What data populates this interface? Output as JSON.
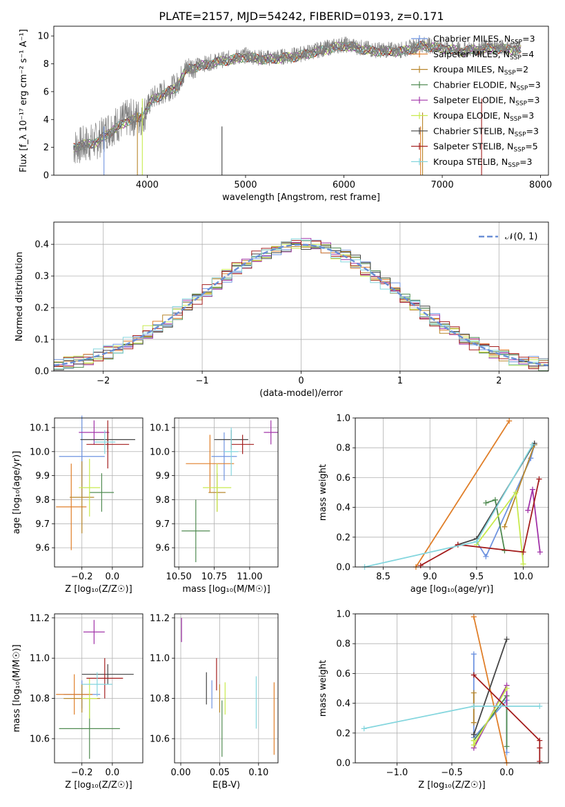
{
  "title": "PLATE=2157, MJD=54242, FIBERID=0193, z=0.171",
  "colors": [
    "#6e93e0",
    "#e07e28",
    "#b8862a",
    "#4f8a50",
    "#a132a8",
    "#c8ea4c",
    "#444444",
    "#a31c1c",
    "#84d6de"
  ],
  "chart_data": [
    {
      "name": "spectrum",
      "type": "line",
      "xlabel": "wavelength [Angstrom, rest frame]",
      "ylabel": "Flux [f_λ 10⁻¹⁷ erg cm⁻² s⁻¹ A⁻¹]",
      "xlim": [
        3050,
        8080
      ],
      "ylim": [
        0,
        10.7
      ],
      "xticks": [
        "4000",
        "5000",
        "6000",
        "7000",
        "8000"
      ],
      "yticks": [
        "0",
        "2",
        "4",
        "6",
        "8",
        "10"
      ],
      "legend": "upper-right",
      "series": [
        {
          "name": "Chabrier MILES, N_SSP=3"
        },
        {
          "name": "Salpeter MILES, N_SSP=4"
        },
        {
          "name": "Kroupa MILES, N_SSP=2"
        },
        {
          "name": "Chabrier ELODIE, N_SSP=3"
        },
        {
          "name": "Salpeter ELODIE, N_SSP=3"
        },
        {
          "name": "Kroupa ELODIE, N_SSP=3"
        },
        {
          "name": "Chabrier STELIB, N_SSP=3"
        },
        {
          "name": "Salpeter STELIB, N_SSP=5"
        },
        {
          "name": "Kroupa STELIB, N_SSP=3"
        }
      ],
      "data_spectrum": {
        "x": [
          3250,
          3500,
          3600,
          3800,
          3950,
          4050,
          4300,
          4400,
          4700,
          5000,
          5200,
          5500,
          5800,
          6000,
          6300,
          6600,
          6800,
          7000,
          7200,
          7500,
          7800
        ],
        "y": [
          2.0,
          2.5,
          3.3,
          4.1,
          4.2,
          5.5,
          6.5,
          7.7,
          8.2,
          8.6,
          8.4,
          8.6,
          9.1,
          9.4,
          9.0,
          9.0,
          9.4,
          9.2,
          9.0,
          9.2,
          9.1
        ]
      },
      "model_spectrum": {
        "x": [
          3250,
          3500,
          3600,
          3800,
          3950,
          4050,
          4300,
          4400,
          4700,
          5000,
          5200,
          5500,
          5800,
          6000,
          6300,
          6600,
          6800,
          7000,
          7200,
          7500,
          7800
        ],
        "y": [
          2.0,
          2.4,
          3.0,
          3.9,
          4.2,
          5.4,
          6.3,
          7.6,
          8.1,
          8.5,
          8.3,
          8.5,
          9.0,
          9.3,
          8.9,
          8.9,
          9.3,
          9.1,
          8.9,
          9.1,
          9.0
        ]
      }
    },
    {
      "name": "residuals",
      "type": "histogram",
      "xlabel": "(data-model)/error",
      "ylabel": "Normed distribution",
      "xlim": [
        -2.5,
        2.5
      ],
      "ylim": [
        0,
        0.47
      ],
      "xticks": [
        "−2",
        "−1",
        "0",
        "1",
        "2"
      ],
      "yticks": [
        "0.0",
        "0.1",
        "0.2",
        "0.3",
        "0.4"
      ],
      "grid": true,
      "legend": "upper-right",
      "legend_label": "𝒩(0, 1)",
      "bin_width": 0.1
    },
    {
      "name": "age-vs-Z",
      "type": "errorbar",
      "xlabel": "Z [log₁₀(Z/Z☉)]",
      "ylabel": "age  [log₁₀(age/yr)]",
      "xlim": [
        -0.38,
        0.2
      ],
      "ylim": [
        9.52,
        10.14
      ],
      "xticks": [
        "−0.2",
        "0.0"
      ],
      "yticks": [
        "9.6",
        "9.7",
        "9.8",
        "9.9",
        "10.0",
        "10.1"
      ],
      "grid": true,
      "points": [
        {
          "x": -0.2,
          "xerr": 0.15,
          "y": 9.98,
          "yerr": 0.17
        },
        {
          "x": -0.27,
          "xerr": 0.1,
          "y": 9.77,
          "yerr": 0.18
        },
        {
          "x": -0.2,
          "xerr": 0.08,
          "y": 9.81,
          "yerr": 0.15
        },
        {
          "x": -0.07,
          "xerr": 0.08,
          "y": 9.83,
          "yerr": 0.08
        },
        {
          "x": -0.12,
          "xerr": 0.1,
          "y": 10.08,
          "yerr": 0.05
        },
        {
          "x": -0.15,
          "xerr": 0.07,
          "y": 9.85,
          "yerr": 0.12
        },
        {
          "x": -0.03,
          "xerr": 0.18,
          "y": 10.05,
          "yerr": 0.04
        },
        {
          "x": -0.03,
          "xerr": 0.14,
          "y": 10.03,
          "yerr": 0.1
        },
        {
          "x": -0.05,
          "xerr": 0.07,
          "y": 10.04,
          "yerr": 0.05
        }
      ]
    },
    {
      "name": "age-vs-mass",
      "type": "errorbar",
      "xlabel": "mass [log₁₀(M/M☉)]",
      "ylabel": "",
      "xlim": [
        10.47,
        11.2
      ],
      "ylim": [
        9.52,
        10.14
      ],
      "xticks": [
        "10.50",
        "10.75",
        "11.00"
      ],
      "yticks": [
        "9.6",
        "9.7",
        "9.8",
        "9.9",
        "10.0",
        "10.1"
      ],
      "grid": true,
      "points": [
        {
          "x": 10.82,
          "xerr": 0.09,
          "y": 9.98,
          "yerr": 0.1
        },
        {
          "x": 10.72,
          "xerr": 0.17,
          "y": 9.95,
          "yerr": 0.12
        },
        {
          "x": 10.77,
          "xerr": 0.06,
          "y": 9.83,
          "yerr": 0.08
        },
        {
          "x": 10.62,
          "xerr": 0.1,
          "y": 9.67,
          "yerr": 0.13
        },
        {
          "x": 11.15,
          "xerr": 0.05,
          "y": 10.08,
          "yerr": 0.05
        },
        {
          "x": 10.77,
          "xerr": 0.1,
          "y": 9.85,
          "yerr": 0.1
        },
        {
          "x": 10.87,
          "xerr": 0.12,
          "y": 10.05,
          "yerr": 0.04
        },
        {
          "x": 10.95,
          "xerr": 0.08,
          "y": 10.03,
          "yerr": 0.04
        },
        {
          "x": 10.87,
          "xerr": 0.05,
          "y": 10.0,
          "yerr": 0.1
        }
      ]
    },
    {
      "name": "mass-weight-vs-age",
      "type": "line",
      "xlabel": "age  [log₁₀(age/yr)]",
      "ylabel": "mass weight",
      "xlim": [
        8.2,
        10.27
      ],
      "ylim": [
        0,
        1
      ],
      "xticks": [
        "8.5",
        "9.0",
        "9.5",
        "10.0"
      ],
      "yticks": [
        "0.0",
        "0.2",
        "0.4",
        "0.6",
        "0.8",
        "1.0"
      ],
      "grid": true,
      "series": [
        {
          "x": [
            9.5,
            9.6,
            10.08,
            10.12
          ],
          "y": [
            0.17,
            0.07,
            0.73,
            0.82
          ]
        },
        {
          "x": [
            8.85,
            9.85
          ],
          "y": [
            0.0,
            0.98
          ]
        },
        {
          "x": [
            9.8,
            10.12
          ],
          "y": [
            0.27,
            0.82
          ]
        },
        {
          "x": [
            9.6,
            9.7,
            9.8
          ],
          "y": [
            0.43,
            0.45,
            0.11
          ]
        },
        {
          "x": [
            10.05,
            10.1,
            10.18
          ],
          "y": [
            0.38,
            0.52,
            0.1
          ]
        },
        {
          "x": [
            9.5,
            9.92,
            10.0
          ],
          "y": [
            0.15,
            0.5,
            0.02
          ]
        },
        {
          "x": [
            9.3,
            9.5,
            10.12
          ],
          "y": [
            0.15,
            0.19,
            0.83
          ]
        },
        {
          "x": [
            8.9,
            9.3,
            10.0,
            10.17
          ],
          "y": [
            0.01,
            0.15,
            0.1,
            0.59
          ]
        },
        {
          "x": [
            8.3,
            9.5,
            10.1
          ],
          "y": [
            0.0,
            0.17,
            0.82
          ]
        }
      ]
    },
    {
      "name": "mass-vs-Z",
      "type": "errorbar",
      "xlabel": "Z [log₁₀(Z/Z☉)]",
      "ylabel": "mass [log₁₀(M/M☉)]",
      "xlim": [
        -0.38,
        0.2
      ],
      "ylim": [
        10.48,
        11.22
      ],
      "xticks": [
        "−0.2",
        "0.0"
      ],
      "yticks": [
        "10.6",
        "10.8",
        "11.0",
        "11.2"
      ],
      "grid": true,
      "points": [
        {
          "x": -0.2,
          "xerr": 0.12,
          "y": 10.82,
          "yerr": 0.07
        },
        {
          "x": -0.25,
          "xerr": 0.12,
          "y": 10.82,
          "yerr": 0.1
        },
        {
          "x": -0.2,
          "xerr": 0.12,
          "y": 10.8,
          "yerr": 0.07
        },
        {
          "x": -0.15,
          "xerr": 0.2,
          "y": 10.65,
          "yerr": 0.15
        },
        {
          "x": -0.12,
          "xerr": 0.07,
          "y": 11.13,
          "yerr": 0.06
        },
        {
          "x": -0.15,
          "xerr": 0.05,
          "y": 10.8,
          "yerr": 0.1
        },
        {
          "x": -0.03,
          "xerr": 0.17,
          "y": 10.92,
          "yerr": 0.05
        },
        {
          "x": -0.05,
          "xerr": 0.12,
          "y": 10.9,
          "yerr": 0.1
        },
        {
          "x": -0.1,
          "xerr": 0.1,
          "y": 10.87,
          "yerr": 0.06
        }
      ]
    },
    {
      "name": "mass-vs-EBV",
      "type": "errorbar",
      "xlabel": "E(B-V)",
      "ylabel": "",
      "xlim": [
        -0.008,
        0.125
      ],
      "ylim": [
        10.48,
        11.22
      ],
      "xticks": [
        "0.00",
        "0.05",
        "0.10"
      ],
      "yticks": [
        "10.6",
        "10.8",
        "11.0",
        "11.2"
      ],
      "grid": true,
      "points": [
        {
          "x": 0.04,
          "xerr": 0,
          "y": 10.82,
          "yerr": 0.07
        },
        {
          "x": 0.12,
          "xerr": 0,
          "y": 10.7,
          "yerr": 0.18
        },
        {
          "x": 0.05,
          "xerr": 0,
          "y": 10.8,
          "yerr": 0.07
        },
        {
          "x": 0.053,
          "xerr": 0,
          "y": 10.65,
          "yerr": 0.14
        },
        {
          "x": 0.001,
          "xerr": 0,
          "y": 11.14,
          "yerr": 0.06
        },
        {
          "x": 0.057,
          "xerr": 0,
          "y": 10.8,
          "yerr": 0.08
        },
        {
          "x": 0.033,
          "xerr": 0,
          "y": 10.85,
          "yerr": 0.08
        },
        {
          "x": 0.046,
          "xerr": 0,
          "y": 10.92,
          "yerr": 0.08
        },
        {
          "x": 0.097,
          "xerr": 0,
          "y": 10.78,
          "yerr": 0.13
        }
      ]
    },
    {
      "name": "mass-weight-vs-Z",
      "type": "line",
      "xlabel": "Z [log₁₀(Z/Z☉)]",
      "ylabel": "mass weight",
      "xlim": [
        -1.38,
        0.38
      ],
      "ylim": [
        0,
        1
      ],
      "xticks": [
        "−1.0",
        "−0.5",
        "0.0"
      ],
      "yticks": [
        "0.0",
        "0.2",
        "0.4",
        "0.6",
        "0.8",
        "1.0"
      ],
      "grid": true,
      "series": [
        {
          "x": [
            -0.3,
            -0.3,
            0.0,
            0.0
          ],
          "y": [
            0.73,
            0.17,
            0.42,
            0.07
          ]
        },
        {
          "x": [
            -0.3,
            0.0
          ],
          "y": [
            0.98,
            0.0
          ]
        },
        {
          "x": [
            -0.3,
            -0.3
          ],
          "y": [
            0.47,
            0.27
          ]
        },
        {
          "x": [
            -0.3,
            0.0,
            0.0
          ],
          "y": [
            0.15,
            0.45,
            0.11
          ]
        },
        {
          "x": [
            -0.3,
            0.0,
            0.0
          ],
          "y": [
            0.1,
            0.52,
            0.38
          ]
        },
        {
          "x": [
            -0.3,
            -0.3,
            0.0
          ],
          "y": [
            0.15,
            0.12,
            0.5
          ]
        },
        {
          "x": [
            -0.3,
            0.0
          ],
          "y": [
            0.19,
            0.83
          ]
        },
        {
          "x": [
            -0.3,
            0.3,
            0.3,
            0.3
          ],
          "y": [
            0.59,
            0.15,
            0.1,
            0.01
          ]
        },
        {
          "x": [
            -1.3,
            -0.3,
            0.3
          ],
          "y": [
            0.23,
            0.38,
            0.38
          ]
        }
      ]
    }
  ]
}
